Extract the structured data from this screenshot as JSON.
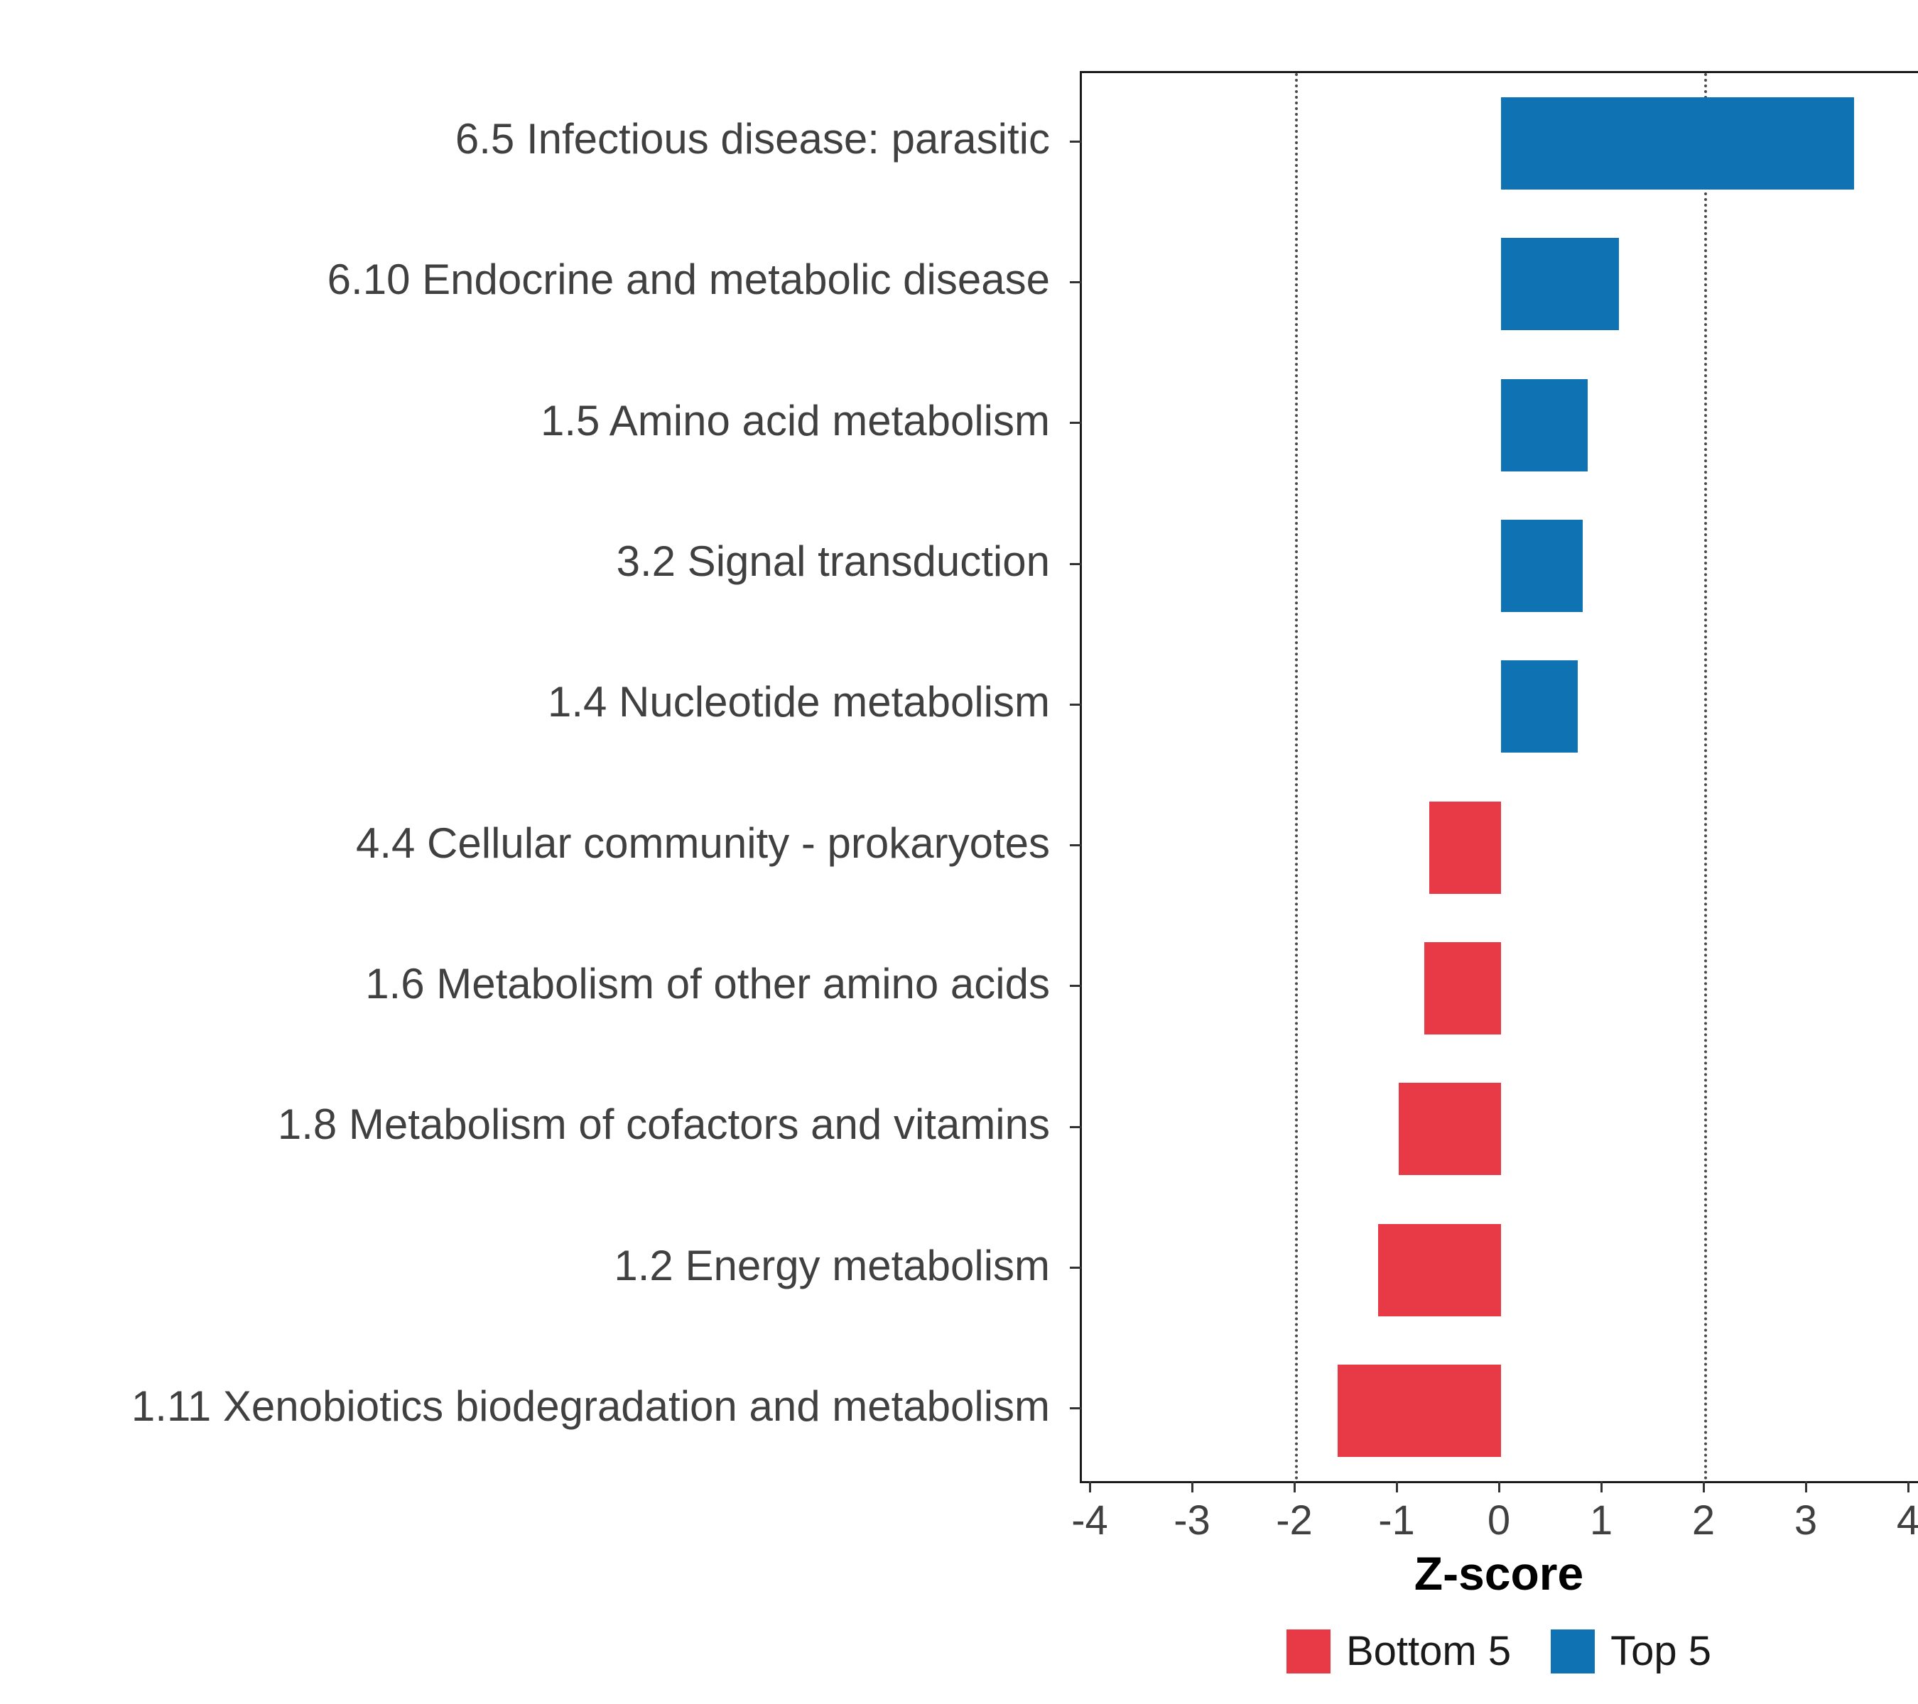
{
  "chart_data": {
    "type": "bar",
    "orientation": "horizontal",
    "title": "",
    "xlabel": "Z-score",
    "ylabel": "",
    "xlim": [
      -4,
      4
    ],
    "x_ticks": [
      -4,
      -3,
      -2,
      -1,
      0,
      1,
      2,
      3,
      4
    ],
    "reference_lines": [
      -2,
      2
    ],
    "grid": "dotted reference lines at -2 and 2 only",
    "legend_position": "bottom",
    "categories": [
      "6.5 Infectious disease: parasitic",
      "6.10 Endocrine and metabolic disease",
      "1.5 Amino acid metabolism",
      "3.2 Signal transduction",
      "1.4 Nucleotide metabolism",
      "4.4 Cellular community - prokaryotes",
      "1.6 Metabolism of other amino acids",
      "1.8 Metabolism of cofactors and vitamins",
      "1.2 Energy metabolism",
      "1.11 Xenobiotics biodegradation and metabolism"
    ],
    "values": [
      3.45,
      1.15,
      0.85,
      0.8,
      0.75,
      -0.7,
      -0.75,
      -1.0,
      -1.2,
      -1.6
    ],
    "series_colors": {
      "top5": "#0F72B2",
      "bottom5": "#E73946"
    },
    "legend": [
      {
        "label": "Bottom 5",
        "color": "#E73946"
      },
      {
        "label": "Top 5",
        "color": "#0F72B2"
      }
    ]
  }
}
